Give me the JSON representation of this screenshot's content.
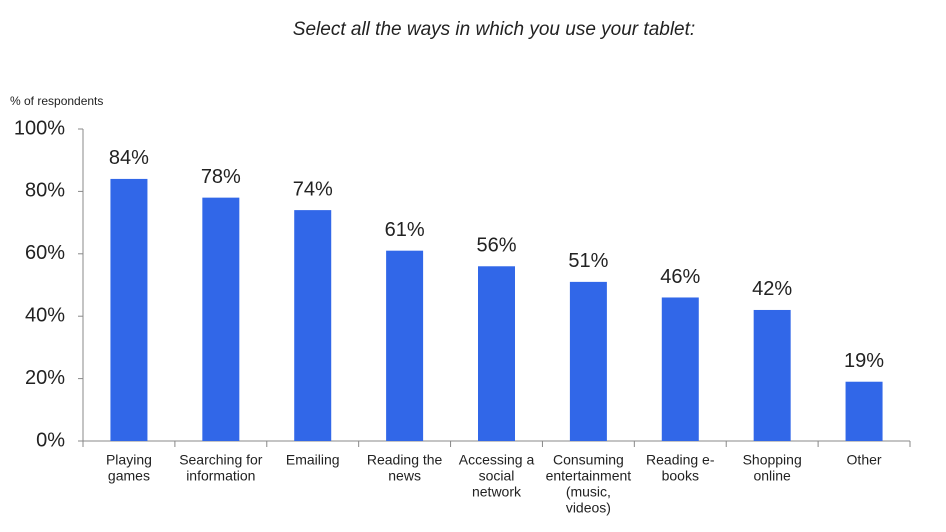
{
  "chart_data": {
    "type": "bar",
    "title": "Select all the ways in which you use your tablet:",
    "y_axis_label": "% of respondents",
    "categories": [
      [
        "Playing",
        "games"
      ],
      [
        "Searching for",
        "information"
      ],
      [
        "Emailing"
      ],
      [
        "Reading the",
        "news"
      ],
      [
        "Accessing a",
        "social",
        "network"
      ],
      [
        "Consuming",
        "entertainment",
        "(music,",
        "videos)"
      ],
      [
        "Reading e-",
        "books"
      ],
      [
        "Shopping",
        "online"
      ],
      [
        "Other"
      ]
    ],
    "values": [
      84,
      78,
      74,
      61,
      56,
      51,
      46,
      42,
      19
    ],
    "value_labels": [
      "84%",
      "78%",
      "74%",
      "61%",
      "56%",
      "51%",
      "46%",
      "42%",
      "19%"
    ],
    "color": "#3167e8",
    "ylim": [
      0,
      100
    ],
    "yticks": [
      {
        "value": 0,
        "label": "0%"
      },
      {
        "value": 20,
        "label": "20%"
      },
      {
        "value": 40,
        "label": "40%"
      },
      {
        "value": 60,
        "label": "60%"
      },
      {
        "value": 80,
        "label": "80%"
      },
      {
        "value": 100,
        "label": "100%"
      }
    ],
    "grid": false
  }
}
